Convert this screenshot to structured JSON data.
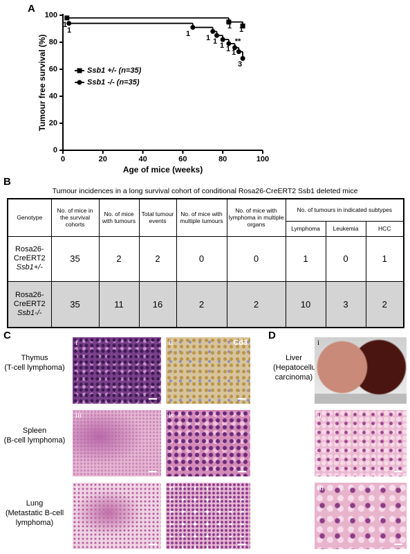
{
  "panel_labels": [
    "A",
    "B",
    "C",
    "D"
  ],
  "chart_data": {
    "type": "step",
    "x_label": "Age of mice (weeks)",
    "y_label": "Tumour free survival (%)",
    "xlim": [
      0,
      100
    ],
    "xticks": [
      0,
      20,
      40,
      60,
      80,
      100
    ],
    "ylim": [
      0,
      100
    ],
    "yticks": [
      0,
      20,
      40,
      60,
      80,
      100
    ],
    "series": [
      {
        "name": "Ssb1 +/- (n=35)",
        "color": "#000000",
        "marker": "square",
        "x": [
          2,
          83,
          90
        ],
        "values": [
          98,
          95,
          92
        ]
      },
      {
        "name": "Ssb1 -/- (n=35)",
        "color": "#000000",
        "marker": "circle",
        "x": [
          3,
          65,
          75,
          77,
          80,
          83,
          86,
          88,
          90
        ],
        "values": [
          94,
          91,
          88,
          85,
          82,
          79,
          76,
          73,
          68
        ]
      }
    ],
    "annotations": [
      "1",
      "1",
      "1",
      "1",
      "1",
      "1",
      "1",
      "1",
      "1",
      "1",
      "1",
      "**",
      "3"
    ]
  },
  "table": {
    "title": "Tumour incidences in a long survival cohort of conditional Rosa26-CreERT2 Ssb1 deleted mice",
    "headers": [
      "Genotype",
      "No. of mice in the survival cohorts",
      "No. of mice with tumours",
      "Total tumour events",
      "No. of mice with multiple tumours",
      "No. of mice with lymphoma in multiple organs"
    ],
    "subtype_header": "No. of tumours in indicated subtypes",
    "subtypes": [
      "Lymphoma",
      "Leukemia",
      "HCC"
    ],
    "rows": [
      {
        "genotype": [
          "Rosa26-",
          "CreERT2",
          "Ssb1+/-"
        ],
        "cells": [
          35,
          2,
          2,
          0,
          0,
          1,
          0,
          1
        ]
      },
      {
        "genotype": [
          "Rosa26-",
          "CreERT2",
          "Ssb1-/-"
        ],
        "cells": [
          35,
          11,
          16,
          2,
          2,
          10,
          3,
          2
        ]
      }
    ]
  },
  "histology": {
    "C": [
      {
        "label": [
          "Thymus",
          "(T-cell lymphoma)"
        ],
        "images": [
          {
            "tag": "i"
          },
          {
            "tag": "ii",
            "stain": "Cd3"
          }
        ]
      },
      {
        "label": [
          "Spleen",
          "(B-cell lymphoma)"
        ],
        "images": [
          {
            "tag": "iii"
          },
          {
            "tag": "iv"
          }
        ]
      },
      {
        "label": [
          "Lung",
          "(Metastatic B-cell",
          "lymphoma)"
        ],
        "images": [
          {
            "tag": "v"
          },
          {
            "tag": "vi"
          }
        ]
      }
    ],
    "D": [
      {
        "label": [
          "Liver",
          "(Hepatocellular",
          "carcinoma)"
        ],
        "images": [
          {
            "tag": "i"
          },
          {
            "tag": "ii"
          },
          {
            "tag": "iii"
          }
        ]
      }
    ]
  }
}
